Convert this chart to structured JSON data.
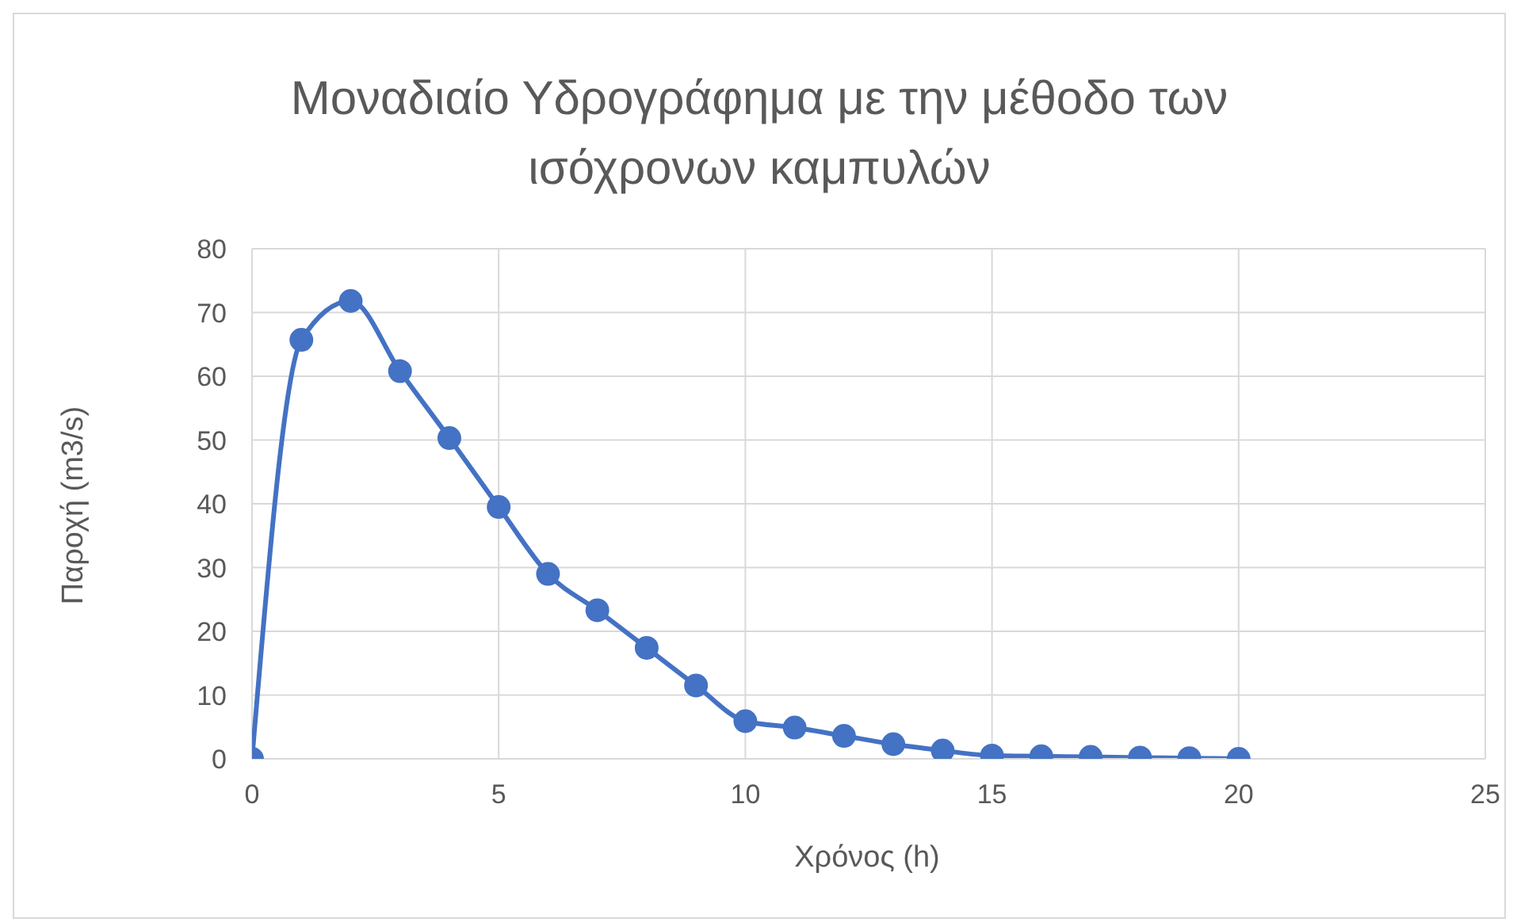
{
  "chart_data": {
    "type": "line",
    "title": "Μοναδιαίο Υδρογράφημα με την μέθοδο των ισόχρονων καμπυλών",
    "xlabel": "Χρόνος (h)",
    "ylabel": "Παροχή (m3/s)",
    "x": [
      0,
      1,
      2,
      3,
      4,
      5,
      6,
      7,
      8,
      9,
      10,
      11,
      12,
      13,
      14,
      15,
      16,
      17,
      18,
      19,
      20
    ],
    "series": [
      {
        "color": "#4472c4",
        "values": [
          0,
          65.7,
          71.8,
          60.8,
          50.3,
          39.5,
          29,
          23.3,
          17.4,
          11.5,
          5.9,
          4.9,
          3.6,
          2.3,
          1.3,
          0.5,
          0.4,
          0.3,
          0.2,
          0.1,
          0
        ]
      }
    ],
    "xlim": [
      0,
      25
    ],
    "xticks": [
      0,
      5,
      10,
      15,
      20,
      25
    ],
    "ylim": [
      0,
      80
    ],
    "yticks": [
      0,
      10,
      20,
      30,
      40,
      50,
      60,
      70,
      80
    ],
    "grid": true,
    "marker": "circle",
    "line_style": "solid",
    "legend": false
  }
}
